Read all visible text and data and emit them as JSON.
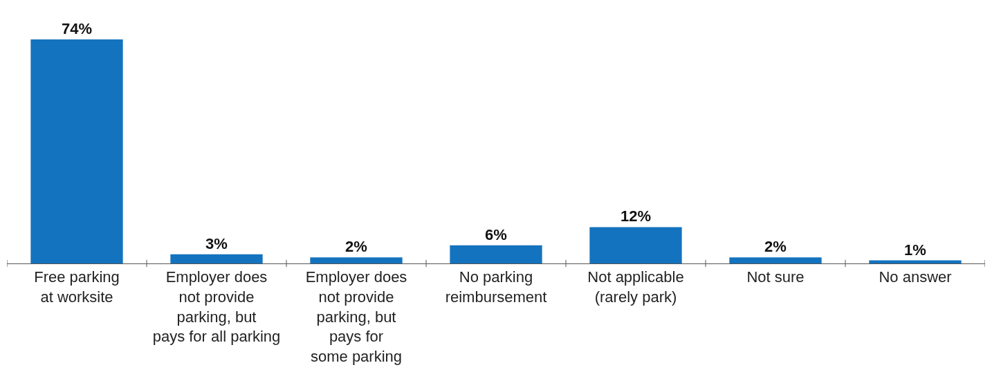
{
  "chart_data": {
    "type": "bar",
    "categories": [
      "Free parking\nat worksite",
      "Employer does\nnot provide\nparking, but\npays for all parking",
      "Employer does\nnot provide\nparking, but\npays for\nsome parking",
      "No parking\nreimbursement",
      "Not applicable\n(rarely park)",
      "Not sure",
      "No answer"
    ],
    "values": [
      74,
      3,
      2,
      6,
      12,
      2,
      1
    ],
    "value_labels": [
      "74%",
      "3%",
      "2%",
      "6%",
      "12%",
      "2%",
      "1%"
    ],
    "color": "#1473be",
    "legend": false
  }
}
